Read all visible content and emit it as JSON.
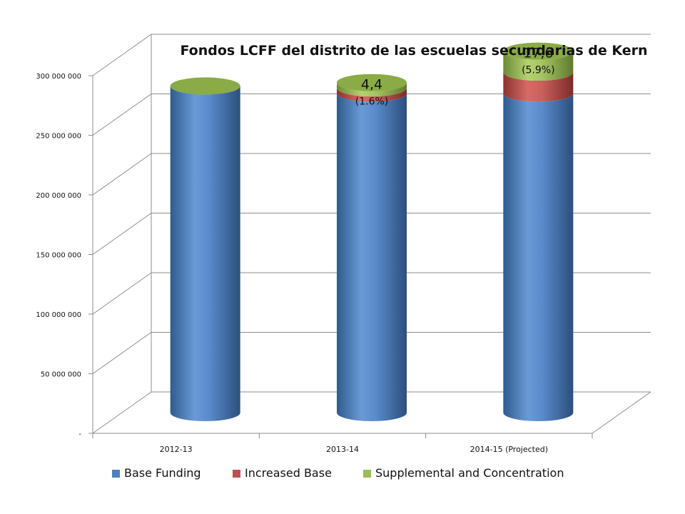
{
  "chart_data": {
    "type": "bar",
    "stacked": true,
    "style": "3d-cylinder",
    "title": "Fondos LCFF del distrito de las escuelas secundarias de Kern",
    "xlabel": "",
    "ylabel": "",
    "categories": [
      "2012-13",
      "2013-14",
      "2014-15 (Projected)"
    ],
    "ylim": [
      0,
      300000000
    ],
    "yticks": [
      0,
      50000000,
      100000000,
      150000000,
      200000000,
      250000000,
      300000000
    ],
    "ytick_labels": [
      "-",
      "50 000 000",
      "100 000 000",
      "150 000 000",
      "200 000 000",
      "250 000 000",
      "300 000 000"
    ],
    "grid": true,
    "legend_position": "bottom",
    "series": [
      {
        "name": "Base Funding",
        "color": "#4F81BD",
        "values": [
          274000000,
          268000000,
          268000000
        ]
      },
      {
        "name": "Increased Base",
        "color": "#C0504D",
        "values": [
          0,
          4400000,
          17600000
        ]
      },
      {
        "name": "Supplemental and Concentration",
        "color": "#9BBB59",
        "values": [
          0,
          4400000,
          17600000
        ]
      }
    ],
    "annotations": [
      {
        "category_index": 1,
        "value_label": "4,4",
        "percent_label": "(1.6%)"
      },
      {
        "category_index": 2,
        "value_label": "17,6",
        "percent_label": "(5.9%)"
      }
    ]
  }
}
